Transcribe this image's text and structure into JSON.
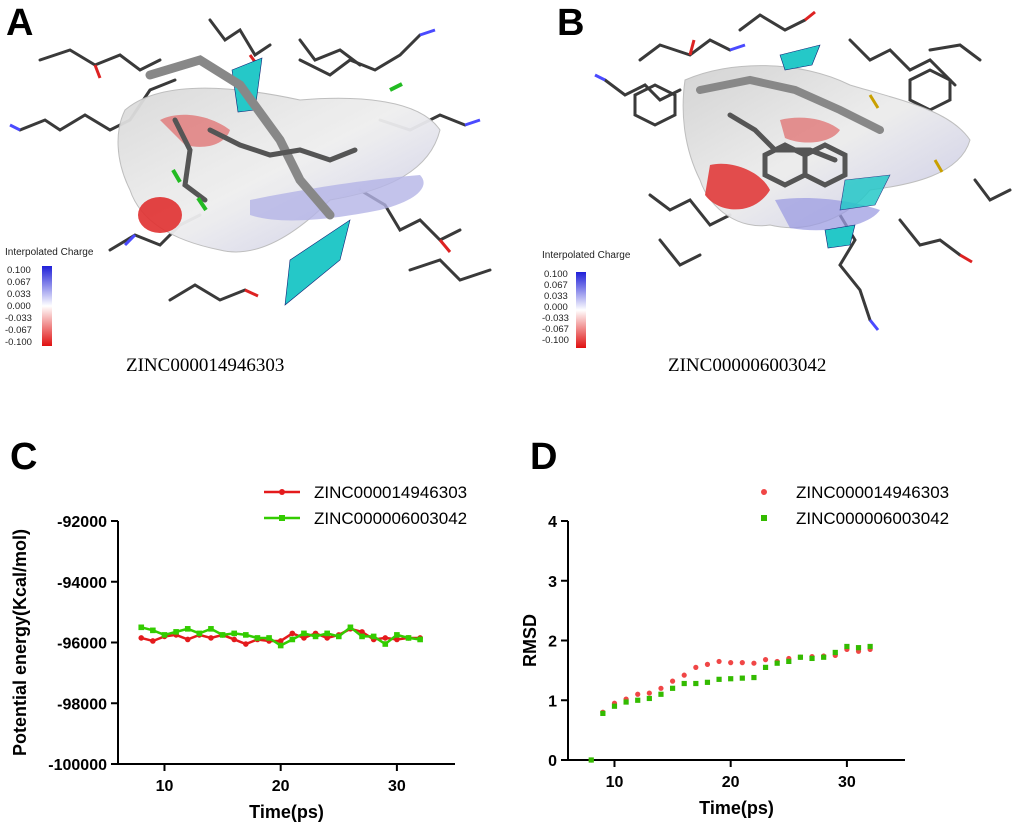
{
  "panels": {
    "A": {
      "letter": "A",
      "caption": "ZINC000014946303",
      "colorbar": {
        "title": "Interpolated Charge",
        "ticks": [
          "0.100",
          "0.067",
          "0.033",
          "0.000",
          "-0.033",
          "-0.067",
          "-0.100"
        ]
      }
    },
    "B": {
      "letter": "B",
      "caption": "ZINC000006003042",
      "colorbar": {
        "title": "Interpolated Charge",
        "ticks": [
          "0.100",
          "0.067",
          "0.033",
          "0.000",
          "-0.033",
          "-0.067",
          "-0.100"
        ]
      }
    },
    "C": {
      "letter": "C"
    },
    "D": {
      "letter": "D"
    }
  },
  "colors": {
    "red": "#e41a1c",
    "green": "#33cc00",
    "cyan": "#25c8c8",
    "surface_red": "#e03030",
    "surface_blue": "#8c8ce6"
  },
  "chart_data": [
    {
      "id": "C",
      "type": "line",
      "xlabel": "Time(ps)",
      "ylabel": "Potential energy(Kcal/mol)",
      "xlim": [
        6,
        35
      ],
      "ylim": [
        -100000,
        -92000
      ],
      "xticks": [
        10,
        20,
        30
      ],
      "yticks": [
        -100000,
        -98000,
        -96000,
        -94000,
        -92000
      ],
      "ytick_labels": [
        "-100000",
        "-98000",
        "-96000",
        "-94000",
        "-92000"
      ],
      "grid": false,
      "legend": "top-right",
      "x": [
        8,
        9,
        10,
        11,
        12,
        13,
        14,
        15,
        16,
        17,
        18,
        19,
        20,
        21,
        22,
        23,
        24,
        25,
        26,
        27,
        28,
        29,
        30,
        31,
        32
      ],
      "series": [
        {
          "name": "ZINC000014946303",
          "color": "#e41a1c",
          "marker": "circle",
          "values": [
            -95850,
            -95950,
            -95800,
            -95750,
            -95900,
            -95750,
            -95850,
            -95750,
            -95900,
            -96050,
            -95900,
            -95950,
            -95950,
            -95700,
            -95850,
            -95700,
            -95850,
            -95750,
            -95550,
            -95650,
            -95900,
            -95850,
            -95900,
            -95850,
            -95850
          ]
        },
        {
          "name": "ZINC000006003042",
          "color": "#33cc00",
          "marker": "square",
          "values": [
            -95500,
            -95600,
            -95750,
            -95650,
            -95550,
            -95700,
            -95550,
            -95750,
            -95700,
            -95750,
            -95850,
            -95850,
            -96100,
            -95900,
            -95700,
            -95800,
            -95700,
            -95800,
            -95500,
            -95800,
            -95800,
            -96050,
            -95750,
            -95850,
            -95900
          ]
        }
      ]
    },
    {
      "id": "D",
      "type": "scatter",
      "xlabel": "Time(ps)",
      "ylabel": "RMSD",
      "xlim": [
        6,
        35
      ],
      "ylim": [
        0,
        4
      ],
      "xticks": [
        10,
        20,
        30
      ],
      "yticks": [
        0,
        1,
        2,
        3,
        4
      ],
      "ytick_labels": [
        "0",
        "1",
        "2",
        "3",
        "4"
      ],
      "grid": false,
      "legend": "top-right",
      "x": [
        8,
        9,
        10,
        11,
        12,
        13,
        14,
        15,
        16,
        17,
        18,
        19,
        20,
        21,
        22,
        23,
        24,
        25,
        26,
        27,
        28,
        29,
        30,
        31,
        32
      ],
      "series": [
        {
          "name": "ZINC000014946303",
          "color": "#f04646",
          "marker": "circle",
          "values": [
            0,
            0.8,
            0.95,
            1.02,
            1.1,
            1.12,
            1.2,
            1.32,
            1.42,
            1.55,
            1.6,
            1.65,
            1.63,
            1.63,
            1.62,
            1.68,
            1.65,
            1.7,
            1.72,
            1.73,
            1.74,
            1.75,
            1.85,
            1.82,
            1.85
          ]
        },
        {
          "name": "ZINC000006003042",
          "color": "#33bb00",
          "marker": "square",
          "values": [
            0,
            0.78,
            0.9,
            0.97,
            1.0,
            1.03,
            1.1,
            1.2,
            1.28,
            1.28,
            1.3,
            1.35,
            1.36,
            1.37,
            1.38,
            1.55,
            1.62,
            1.65,
            1.72,
            1.7,
            1.72,
            1.8,
            1.9,
            1.88,
            1.9
          ]
        }
      ]
    }
  ]
}
